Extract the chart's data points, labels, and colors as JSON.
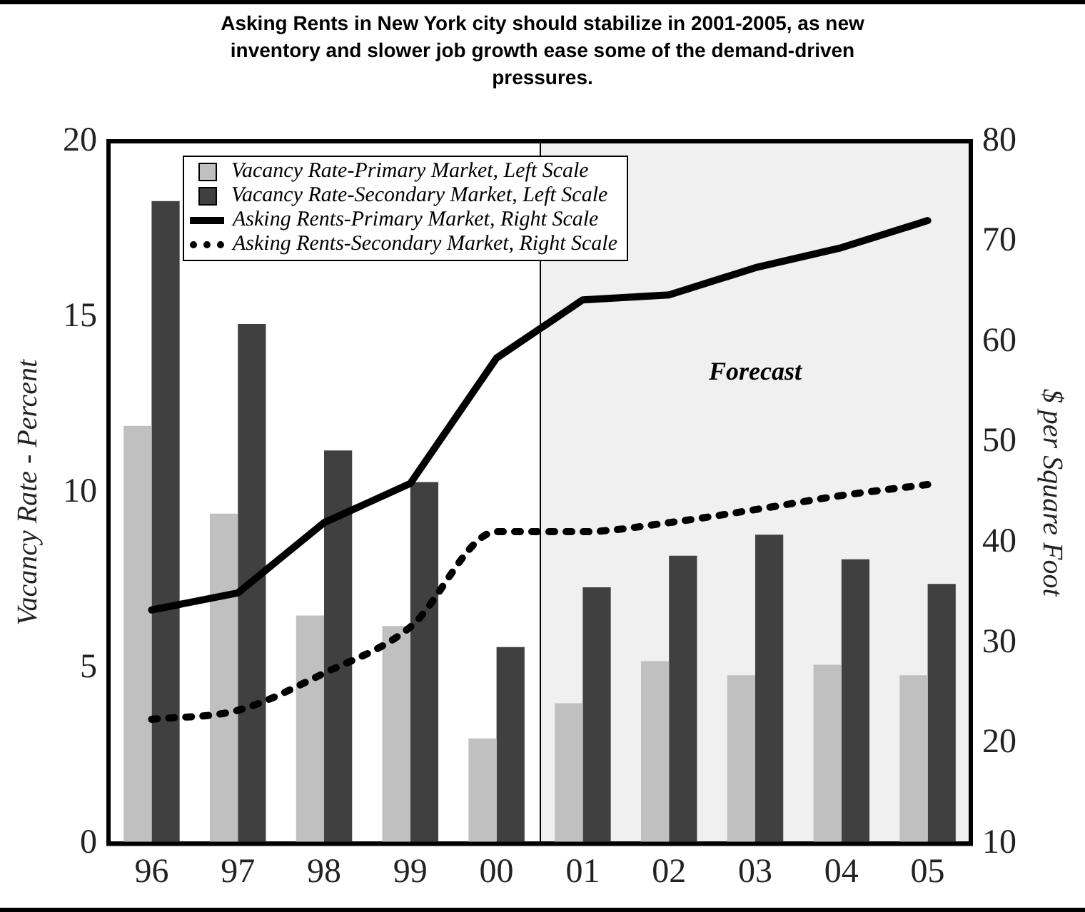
{
  "chart_data": {
    "type": "bar",
    "title": "Asking Rents in New York city should stabilize in 2001-2005, as new inventory and slower job growth ease some of the demand-driven pressures.",
    "ylabel": "Vacancy Rate - Percent",
    "y2label": "$ per Square Foot",
    "categories": [
      "96",
      "97",
      "98",
      "99",
      "00",
      "01",
      "02",
      "03",
      "04",
      "05"
    ],
    "series": [
      {
        "name": "Vacancy Rate-Primary Market, Left Scale",
        "color": "#c0c0c0",
        "values": [
          11.9,
          9.4,
          6.5,
          6.2,
          3.0,
          4.0,
          5.2,
          4.8,
          5.1,
          4.8
        ]
      },
      {
        "name": "Vacancy Rate-Secondary Market, Left Scale",
        "color": "#404040",
        "values": [
          18.3,
          14.8,
          11.2,
          10.3,
          5.6,
          7.3,
          8.2,
          8.8,
          8.1,
          7.4
        ]
      },
      {
        "name": "Asking Rents-Primary Market, Right Scale",
        "type": "line",
        "axis": "y2",
        "color": "#000000",
        "line_style": "solid",
        "values": [
          33.3,
          35.0,
          42.0,
          45.9,
          58.4,
          64.2,
          64.7,
          67.4,
          69.4,
          72.1
        ]
      },
      {
        "name": "Asking Rents-Secondary Market, Right Scale",
        "type": "line",
        "axis": "y2",
        "color": "#000000",
        "line_style": "dotted",
        "values": [
          22.4,
          23.3,
          27.0,
          31.6,
          41.1,
          41.1,
          42.0,
          43.3,
          44.7,
          45.8
        ]
      }
    ],
    "ylim": [
      0,
      20
    ],
    "yticks": [
      0,
      5,
      10,
      15,
      20
    ],
    "y2lim": [
      10,
      80
    ],
    "y2ticks": [
      10,
      20,
      30,
      40,
      50,
      60,
      70,
      80
    ],
    "annotations": [
      "Forecast"
    ],
    "grid": false,
    "legend": "top left",
    "marker": "none"
  }
}
